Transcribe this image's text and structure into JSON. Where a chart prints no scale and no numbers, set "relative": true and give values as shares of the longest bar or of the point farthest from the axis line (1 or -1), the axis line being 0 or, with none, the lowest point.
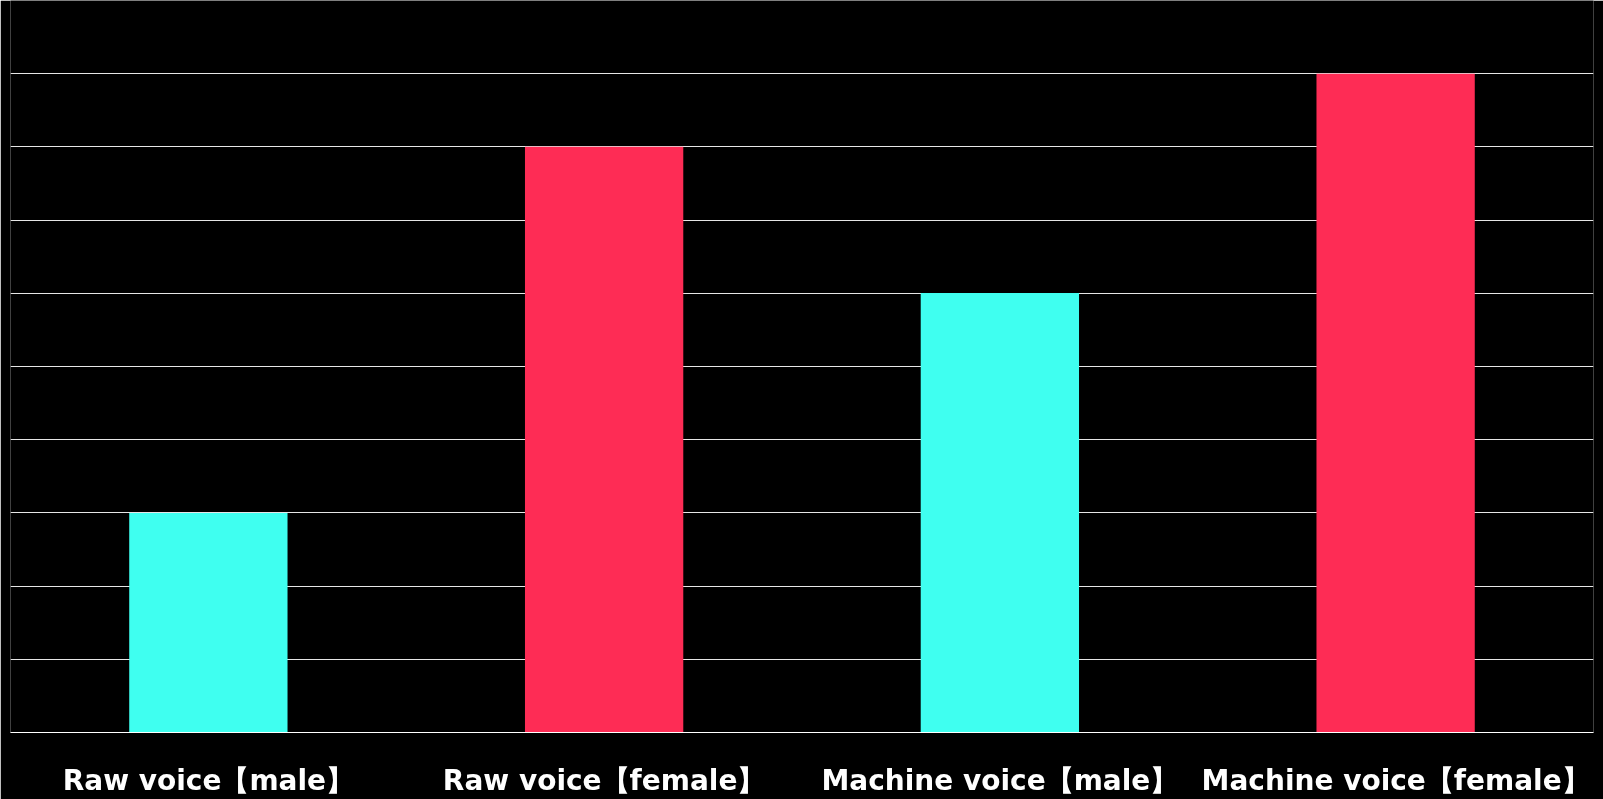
{
  "chart_data": {
    "type": "bar",
    "relative": true,
    "grid": "y",
    "categories": [
      "Raw voice【male】",
      "Raw voice【female】",
      "Machine voice【male】",
      "Machine voice【female】"
    ],
    "values": [
      0.333,
      0.889,
      0.667,
      1
    ],
    "colors": [
      "#3ffff0",
      "#fe2c55",
      "#3ffff0",
      "#fe2c55"
    ]
  }
}
